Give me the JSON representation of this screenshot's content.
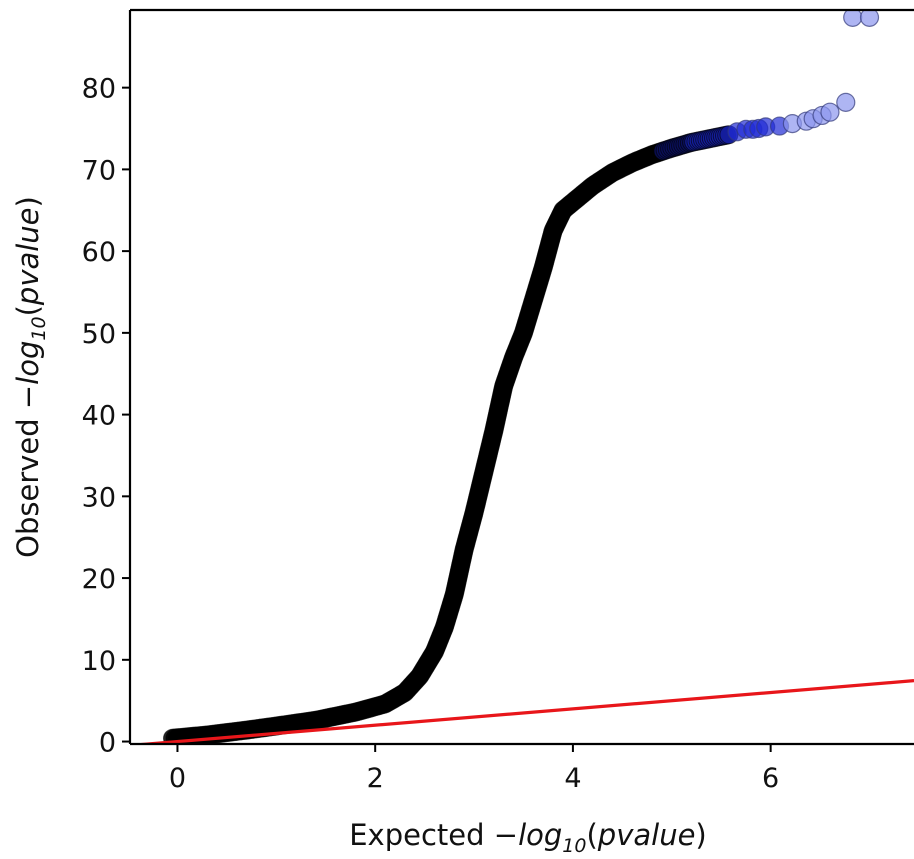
{
  "chart_data": {
    "type": "scatter",
    "xlabel": {
      "prefix": "Expected −",
      "func": "log",
      "sub": "10",
      "arg_open": "(",
      "arg": "pvalue",
      "arg_close": ")"
    },
    "ylabel": {
      "prefix": "Observed −",
      "func": "log",
      "sub": "10",
      "arg_open": "(",
      "arg": "pvalue",
      "arg_close": ")"
    },
    "xlim": [
      -0.48,
      7.45
    ],
    "ylim": [
      -0.3,
      89.5
    ],
    "xticks": [
      0,
      2,
      4,
      6
    ],
    "yticks": [
      0,
      10,
      20,
      30,
      40,
      50,
      60,
      70,
      80
    ],
    "reference_line": {
      "color": "#e8161a",
      "slope": 1,
      "intercept": 0
    },
    "point_colors": {
      "dense": "#000000",
      "sparse_dark": "#1f2bd6",
      "sparse_light": "#8c96ee"
    },
    "curve": [
      [
        -0.05,
        0.4
      ],
      [
        0.3,
        0.8
      ],
      [
        0.7,
        1.4
      ],
      [
        1.0,
        1.9
      ],
      [
        1.4,
        2.6
      ],
      [
        1.8,
        3.6
      ],
      [
        2.1,
        4.6
      ],
      [
        2.3,
        6.0
      ],
      [
        2.45,
        8.0
      ],
      [
        2.6,
        11.0
      ],
      [
        2.7,
        14.0
      ],
      [
        2.8,
        18.0
      ],
      [
        2.9,
        23.5
      ],
      [
        3.0,
        28.0
      ],
      [
        3.1,
        33.0
      ],
      [
        3.2,
        38.0
      ],
      [
        3.3,
        43.5
      ],
      [
        3.4,
        47.0
      ],
      [
        3.5,
        50.0
      ],
      [
        3.6,
        54.0
      ],
      [
        3.7,
        58.0
      ],
      [
        3.8,
        62.5
      ],
      [
        3.9,
        65.0
      ],
      [
        4.05,
        66.5
      ],
      [
        4.2,
        68.0
      ],
      [
        4.4,
        69.6
      ],
      [
        4.6,
        70.8
      ],
      [
        4.8,
        71.8
      ],
      [
        5.0,
        72.6
      ],
      [
        5.2,
        73.3
      ],
      [
        5.4,
        73.8
      ],
      [
        5.6,
        74.3
      ]
    ],
    "outliers": [
      {
        "x": 5.66,
        "y": 74.6,
        "tone": "sparse_dark"
      },
      {
        "x": 5.75,
        "y": 74.9,
        "tone": "sparse_dark"
      },
      {
        "x": 5.82,
        "y": 74.9,
        "tone": "sparse_dark"
      },
      {
        "x": 5.88,
        "y": 75.0,
        "tone": "sparse_dark"
      },
      {
        "x": 5.95,
        "y": 75.2,
        "tone": "sparse_dark"
      },
      {
        "x": 6.09,
        "y": 75.3,
        "tone": "sparse_dark"
      },
      {
        "x": 6.22,
        "y": 75.6,
        "tone": "sparse_light"
      },
      {
        "x": 6.36,
        "y": 75.9,
        "tone": "sparse_light"
      },
      {
        "x": 6.43,
        "y": 76.2,
        "tone": "sparse_light"
      },
      {
        "x": 6.52,
        "y": 76.6,
        "tone": "sparse_light"
      },
      {
        "x": 6.6,
        "y": 77.0,
        "tone": "sparse_light"
      },
      {
        "x": 6.76,
        "y": 78.2,
        "tone": "sparse_light"
      },
      {
        "x": 6.83,
        "y": 88.6,
        "tone": "sparse_light"
      },
      {
        "x": 7.0,
        "y": 88.6,
        "tone": "sparse_light"
      }
    ]
  }
}
